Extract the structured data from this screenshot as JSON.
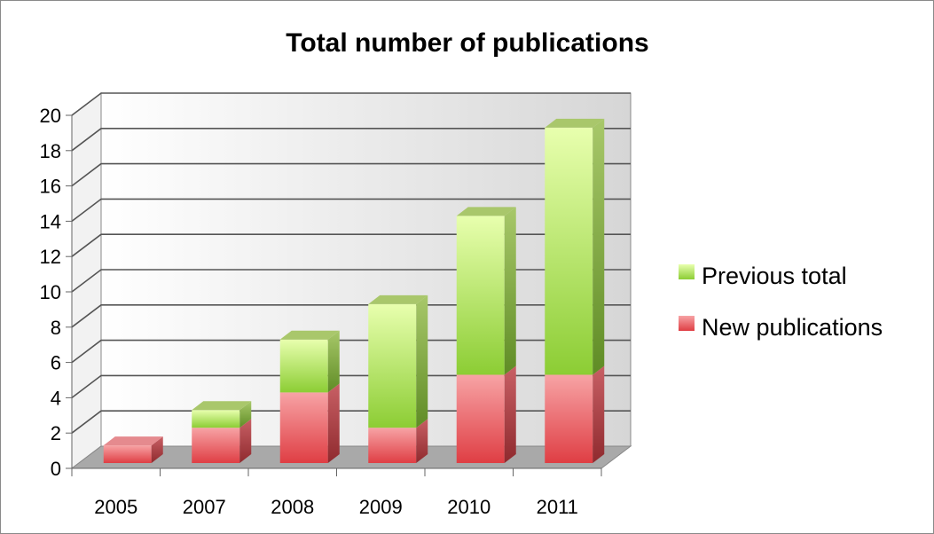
{
  "chart_data": {
    "type": "bar",
    "stacked": true,
    "three_d": true,
    "title": "Total number of publications",
    "xlabel": "",
    "ylabel": "",
    "categories": [
      "2005",
      "2007",
      "2008",
      "2009",
      "2010",
      "2011"
    ],
    "series": [
      {
        "name": "New publications",
        "values": [
          1,
          2,
          4,
          2,
          5,
          5
        ],
        "color": "#e8555a"
      },
      {
        "name": "Previous total",
        "values": [
          0,
          1,
          3,
          7,
          9,
          14
        ],
        "color": "#9ed84a"
      }
    ],
    "ylim": [
      0,
      20
    ],
    "yticks": [
      "0",
      "2",
      "4",
      "6",
      "8",
      "10",
      "12",
      "14",
      "16",
      "18",
      "20"
    ],
    "grid": true,
    "legend_position": "right",
    "legend": [
      {
        "name": "Previous total",
        "color": "#9ed84a"
      },
      {
        "name": "New publications",
        "color": "#e8555a"
      }
    ]
  }
}
